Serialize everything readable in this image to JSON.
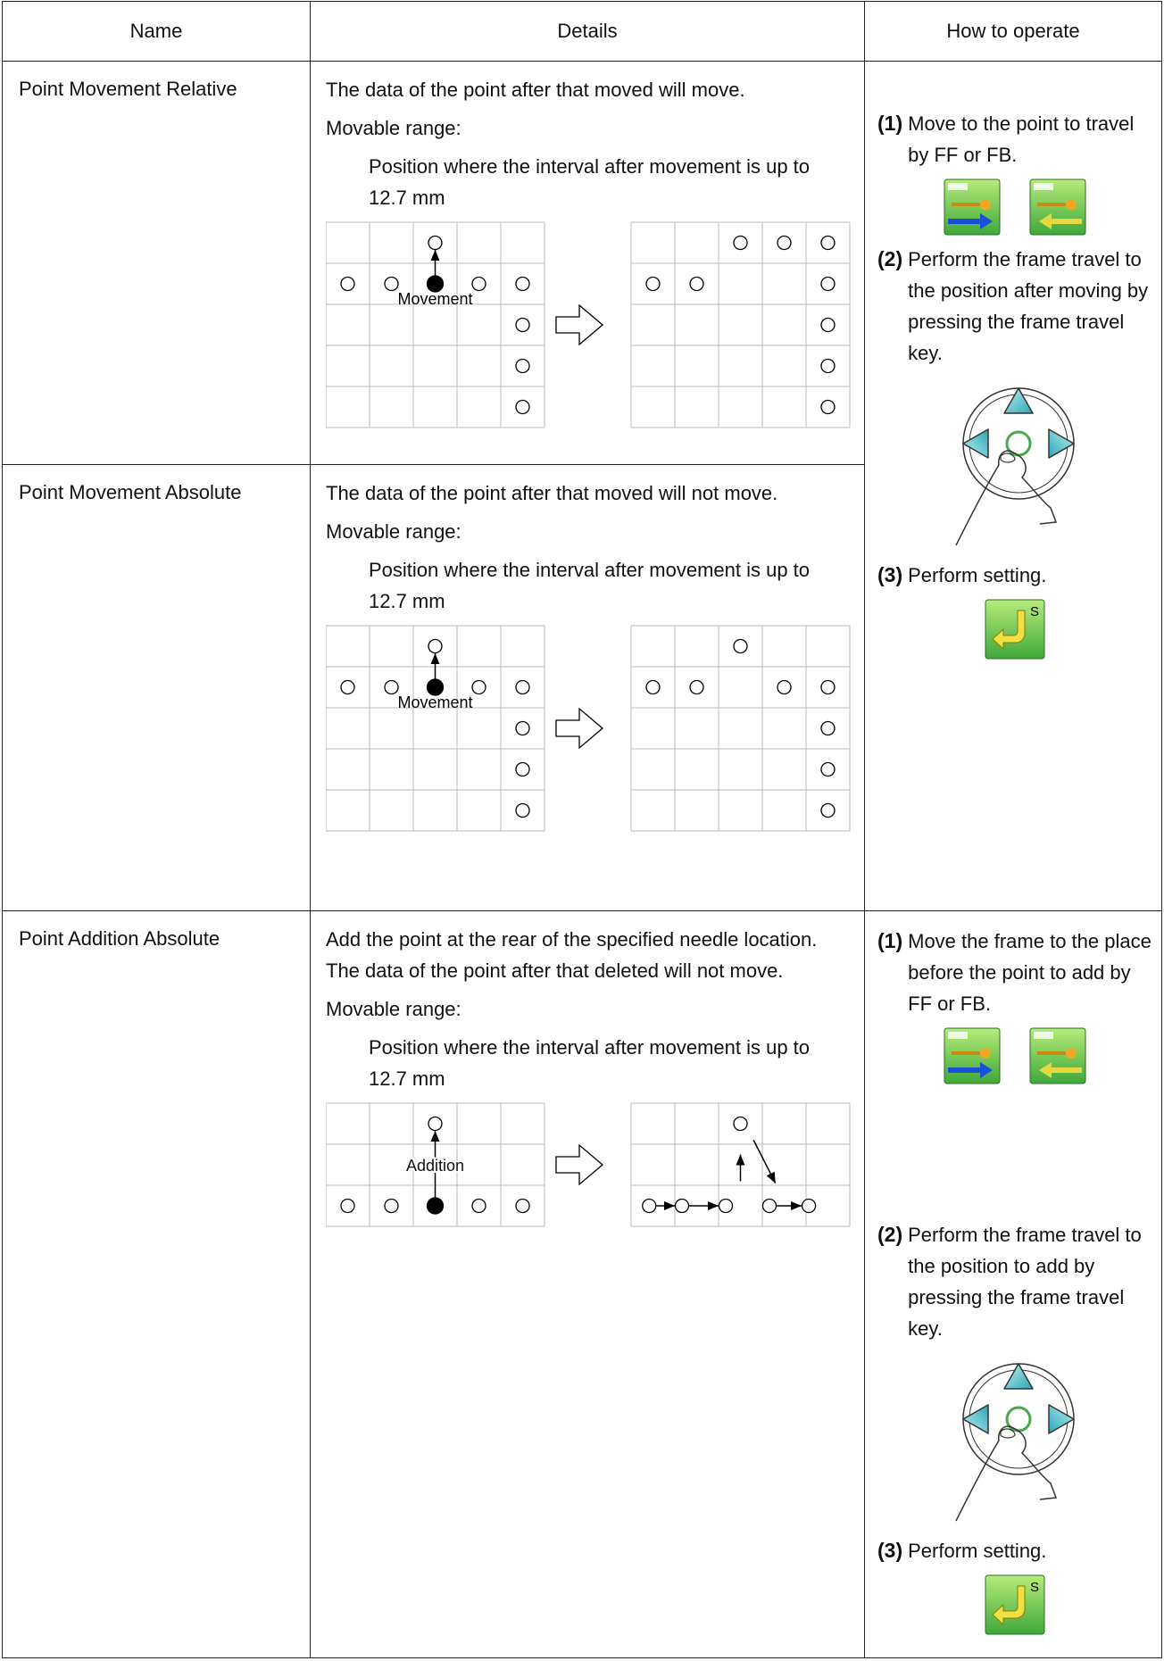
{
  "table": {
    "headers": [
      "Name",
      "Details",
      "How to operate"
    ],
    "rows": [
      {
        "name": "Point Movement Relative",
        "description": "The data of the point after that moved will move.",
        "range_label": "Movable range:",
        "range_text": "Position where the interval after movement is up to 12.7 mm",
        "diagram_label": "Movement"
      },
      {
        "name": "Point Movement Absolute",
        "description": "The data of the point after that moved will not move.",
        "range_label": "Movable range:",
        "range_text": "Position where the interval after movement is up to 12.7 mm",
        "diagram_label": "Movement"
      },
      {
        "name": "Point Addition Absolute",
        "description": "Add the point at the rear of the specified needle location. The data of the point after that deleted will not move.",
        "range_label": "Movable range:",
        "range_text": "Position where the interval after movement is up to 12.7 mm",
        "diagram_label": "Addition"
      }
    ]
  },
  "operations": [
    {
      "steps": [
        {
          "num": "(1)",
          "text": "Move to the point to travel by FF or FB."
        },
        {
          "num": "(2)",
          "text": "Perform the frame travel to the position after moving by pressing the frame travel key."
        },
        {
          "num": "(3)",
          "text": "Perform setting."
        }
      ],
      "key_label": "S"
    },
    {
      "steps": [
        {
          "num": "(1)",
          "text": "Move the frame to the place before the point to add by FF or FB."
        },
        {
          "num": "(2)",
          "text": "Perform the frame travel to the position to add by pressing the frame travel key."
        },
        {
          "num": "(3)",
          "text": "Perform setting."
        }
      ],
      "key_label": "S"
    }
  ]
}
